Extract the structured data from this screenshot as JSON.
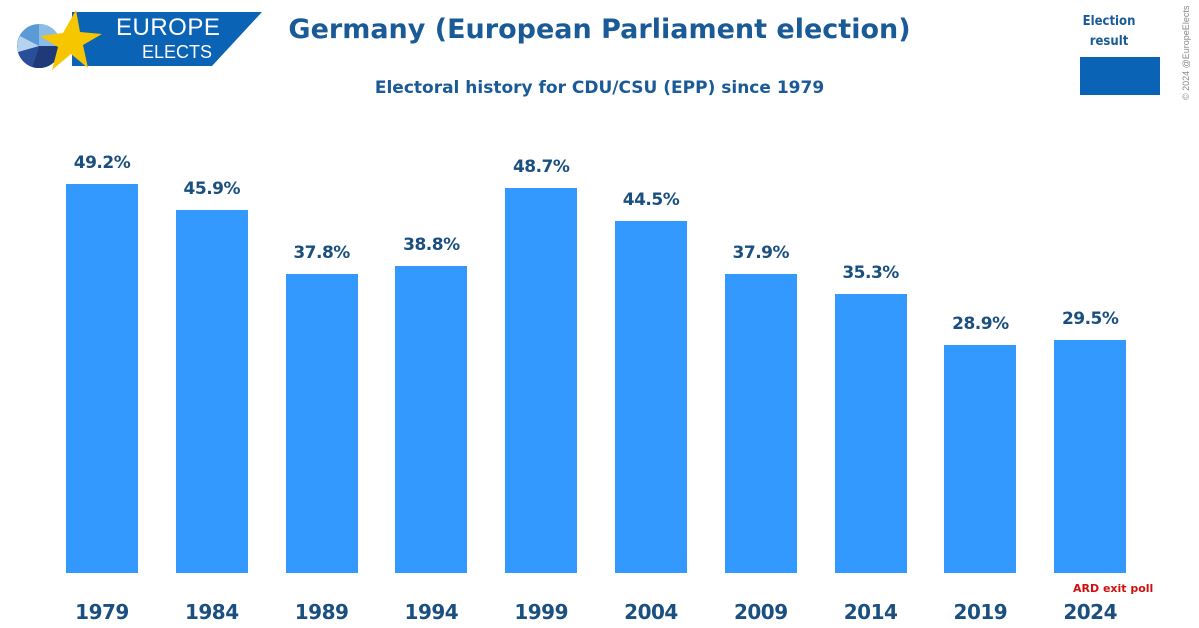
{
  "logo": {
    "line1": "EUROPE",
    "line2": "ELECTS"
  },
  "header": {
    "title": "Germany (European Parliament election)",
    "subtitle": "Electoral history for CDU/CSU (EPP) since 1979"
  },
  "legend": {
    "label": "Election result",
    "color": "#0a63b5"
  },
  "copyright": "© 2024 @EuropeElects",
  "note": "ARD exit poll",
  "colors": {
    "bar": "#3399ff",
    "text": "#1a4f80",
    "note": "#d01010"
  },
  "chart_data": {
    "type": "bar",
    "title": "Germany (European Parliament election)",
    "subtitle": "Electoral history for CDU/CSU (EPP) since 1979",
    "xlabel": "",
    "ylabel": "",
    "ylim": [
      0,
      50
    ],
    "grid": false,
    "legend": "top-right",
    "categories": [
      "1979",
      "1984",
      "1989",
      "1994",
      "1999",
      "2004",
      "2009",
      "2014",
      "2019",
      "2024"
    ],
    "values": [
      49.2,
      45.9,
      37.8,
      38.8,
      48.7,
      44.5,
      37.9,
      35.3,
      28.9,
      29.5
    ],
    "labels": [
      "49.2%",
      "45.9%",
      "37.8%",
      "38.8%",
      "48.7%",
      "44.5%",
      "37.9%",
      "35.3%",
      "28.9%",
      "29.5%"
    ],
    "series": [
      {
        "name": "Election result",
        "values": [
          49.2,
          45.9,
          37.8,
          38.8,
          48.7,
          44.5,
          37.9,
          35.3,
          28.9,
          29.5
        ]
      }
    ],
    "annotations": [
      {
        "category": "2024",
        "text": "ARD exit poll"
      }
    ]
  }
}
